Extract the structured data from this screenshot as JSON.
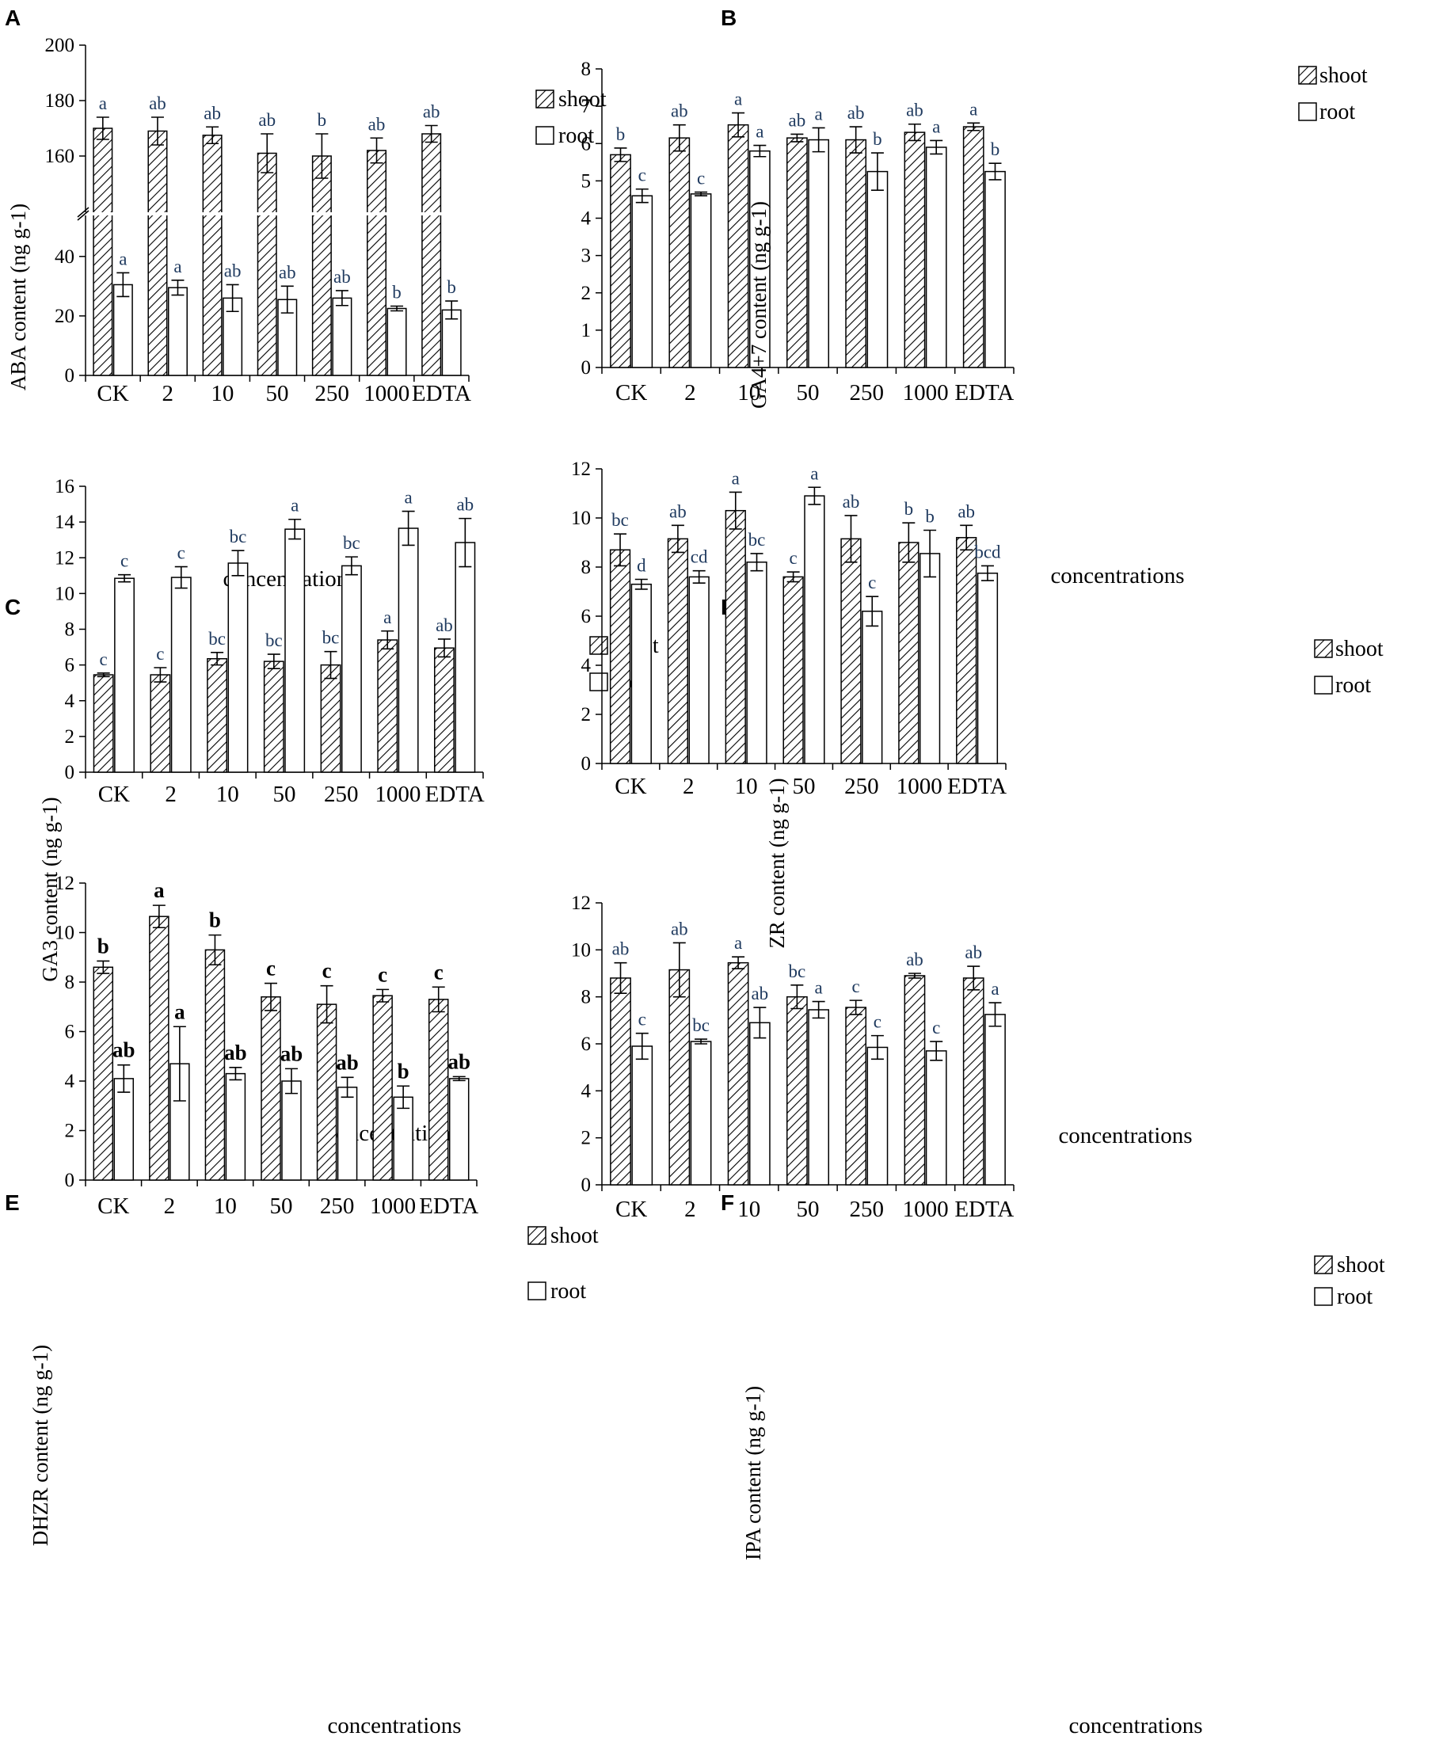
{
  "figure": {
    "categories": [
      "CK",
      "2",
      "10",
      "50",
      "250",
      "1000",
      "EDTA"
    ],
    "xlabel": "concentrations",
    "legend": [
      "shoot",
      "root"
    ],
    "colors": {
      "shoot_hatch": "#000000",
      "root_fill": "#ffffff",
      "axis": "#000000",
      "sig_text": "#1f3a5f"
    }
  },
  "chart_data": [
    {
      "panel": "A",
      "type": "bar",
      "ylabel": "ABA content (ng g-1)",
      "categories": [
        "CK",
        "2",
        "10",
        "50",
        "250",
        "1000",
        "EDTA"
      ],
      "broken_axis": true,
      "yticks": [
        "0",
        "20",
        "40",
        "160",
        "180",
        "200"
      ],
      "ylim_lower": [
        0,
        45
      ],
      "ylim_upper": [
        140,
        200
      ],
      "series": [
        {
          "name": "shoot",
          "values": [
            170,
            169,
            167.5,
            161,
            160,
            162,
            168
          ],
          "errors": [
            4,
            5,
            3,
            7,
            8,
            4.5,
            3
          ],
          "sig": [
            "a",
            "ab",
            "ab",
            "ab",
            "b",
            "ab",
            "ab"
          ]
        },
        {
          "name": "root",
          "values": [
            30.5,
            29.5,
            26,
            25.5,
            26,
            22.5,
            22
          ],
          "errors": [
            4,
            2.5,
            4.5,
            4.5,
            2.5,
            0.8,
            3
          ],
          "sig": [
            "a",
            "a",
            "ab",
            "ab",
            "ab",
            "b",
            "b"
          ]
        }
      ]
    },
    {
      "panel": "B",
      "type": "bar",
      "ylabel": "GA4+7 content (ng g-1)",
      "categories": [
        "CK",
        "2",
        "10",
        "50",
        "250",
        "1000",
        "EDTA"
      ],
      "ylim": [
        0,
        8
      ],
      "yticks": [
        "0",
        "1",
        "2",
        "3",
        "4",
        "5",
        "6",
        "7",
        "8"
      ],
      "series": [
        {
          "name": "shoot",
          "values": [
            5.7,
            6.15,
            6.5,
            6.15,
            6.1,
            6.3,
            6.45
          ],
          "errors": [
            0.18,
            0.35,
            0.32,
            0.1,
            0.35,
            0.22,
            0.1
          ],
          "sig": [
            "b",
            "ab",
            "a",
            "ab",
            "ab",
            "ab",
            "a"
          ]
        },
        {
          "name": "root",
          "values": [
            4.6,
            4.65,
            5.8,
            6.1,
            5.25,
            5.9,
            5.25
          ],
          "errors": [
            0.18,
            0.05,
            0.15,
            0.32,
            0.5,
            0.18,
            0.22
          ],
          "sig": [
            "c",
            "c",
            "a",
            "a",
            "b",
            "a",
            "b"
          ]
        }
      ]
    },
    {
      "panel": "C",
      "type": "bar",
      "ylabel": "GA3 content (ng g-1)",
      "categories": [
        "CK",
        "2",
        "10",
        "50",
        "250",
        "1000",
        "EDTA"
      ],
      "ylim": [
        0,
        16
      ],
      "yticks": [
        "0",
        "2",
        "4",
        "6",
        "8",
        "10",
        "12",
        "14",
        "16"
      ],
      "series": [
        {
          "name": "shoot",
          "values": [
            5.45,
            5.45,
            6.35,
            6.2,
            6.0,
            7.4,
            6.95
          ],
          "errors": [
            0.1,
            0.4,
            0.35,
            0.4,
            0.75,
            0.5,
            0.5
          ],
          "sig": [
            "c",
            "c",
            "bc",
            "bc",
            "bc",
            "a",
            "ab"
          ]
        },
        {
          "name": "root",
          "values": [
            10.85,
            10.9,
            11.7,
            13.6,
            11.55,
            13.65,
            12.85
          ],
          "errors": [
            0.2,
            0.6,
            0.7,
            0.55,
            0.5,
            0.95,
            1.35
          ],
          "sig": [
            "c",
            "c",
            "bc",
            "a",
            "bc",
            "a",
            "ab"
          ]
        }
      ]
    },
    {
      "panel": "D",
      "type": "bar",
      "ylabel": "ZR content (ng g-1)",
      "categories": [
        "CK",
        "2",
        "10",
        "50",
        "250",
        "1000",
        "EDTA"
      ],
      "ylim": [
        0,
        12
      ],
      "yticks": [
        "0",
        "2",
        "4",
        "6",
        "8",
        "10",
        "12"
      ],
      "series": [
        {
          "name": "shoot",
          "values": [
            8.7,
            9.15,
            10.3,
            7.6,
            9.15,
            9.0,
            9.2
          ],
          "errors": [
            0.65,
            0.55,
            0.75,
            0.2,
            0.95,
            0.8,
            0.5
          ],
          "sig": [
            "bc",
            "ab",
            "a",
            "c",
            "ab",
            "b",
            "ab"
          ]
        },
        {
          "name": "root",
          "values": [
            7.3,
            7.6,
            8.2,
            10.9,
            6.2,
            8.55,
            7.75
          ],
          "errors": [
            0.2,
            0.25,
            0.35,
            0.35,
            0.6,
            0.95,
            0.3
          ],
          "sig": [
            "d",
            "cd",
            "bc",
            "a",
            "c",
            "b",
            "bcd"
          ]
        }
      ]
    },
    {
      "panel": "E",
      "type": "bar",
      "ylabel": "DHZR content (ng g-1)",
      "categories": [
        "CK",
        "2",
        "10",
        "50",
        "250",
        "1000",
        "EDTA"
      ],
      "ylim": [
        0,
        12
      ],
      "yticks": [
        "0",
        "2",
        "4",
        "6",
        "8",
        "10",
        "12"
      ],
      "series": [
        {
          "name": "shoot",
          "values": [
            8.6,
            10.65,
            9.3,
            7.4,
            7.1,
            7.45,
            7.3
          ],
          "errors": [
            0.25,
            0.45,
            0.6,
            0.55,
            0.75,
            0.25,
            0.5
          ],
          "sig": [
            "b",
            "a",
            "b",
            "c",
            "c",
            "c",
            "c"
          ]
        },
        {
          "name": "root",
          "values": [
            4.1,
            4.7,
            4.3,
            4.0,
            3.75,
            3.35,
            4.1
          ],
          "errors": [
            0.55,
            1.5,
            0.25,
            0.5,
            0.4,
            0.45,
            0.08
          ],
          "sig": [
            "ab",
            "a",
            "ab",
            "ab",
            "ab",
            "b",
            "ab"
          ]
        }
      ]
    },
    {
      "panel": "F",
      "type": "bar",
      "ylabel": "IPA content (ng g-1)",
      "categories": [
        "CK",
        "2",
        "10",
        "50",
        "250",
        "1000",
        "EDTA"
      ],
      "ylim": [
        0,
        12
      ],
      "yticks": [
        "0",
        "2",
        "4",
        "6",
        "8",
        "10",
        "12"
      ],
      "series": [
        {
          "name": "shoot",
          "values": [
            8.8,
            9.15,
            9.45,
            8.0,
            7.55,
            8.9,
            8.8
          ],
          "errors": [
            0.65,
            1.15,
            0.25,
            0.5,
            0.3,
            0.1,
            0.5
          ],
          "sig": [
            "ab",
            "ab",
            "a",
            "bc",
            "c",
            "ab",
            "ab"
          ]
        },
        {
          "name": "root",
          "values": [
            5.9,
            6.1,
            6.9,
            7.45,
            5.85,
            5.7,
            7.25
          ],
          "errors": [
            0.55,
            0.1,
            0.65,
            0.35,
            0.5,
            0.4,
            0.5
          ],
          "sig": [
            "c",
            "bc",
            "ab",
            "a",
            "c",
            "c",
            "a"
          ]
        }
      ]
    }
  ]
}
